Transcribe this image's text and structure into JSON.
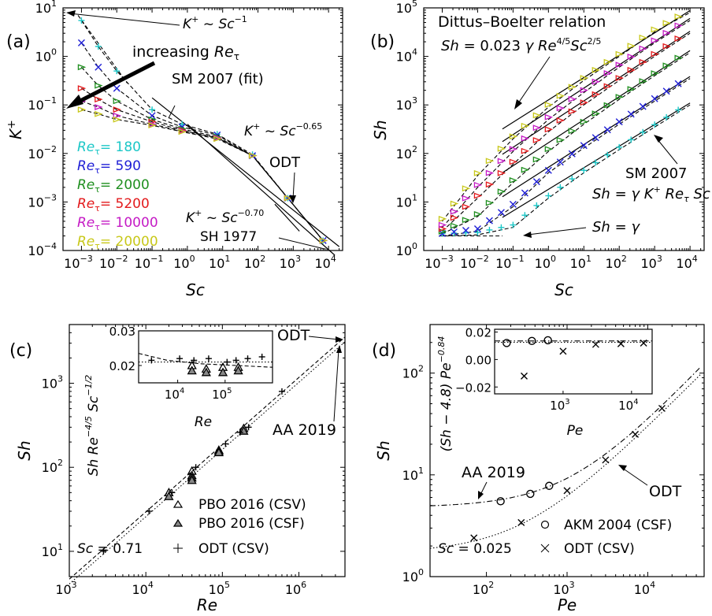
{
  "chart_data": [
    {
      "panel": "(a)",
      "type": "line",
      "xlabel": "Sc",
      "ylabel": "K+",
      "xscale": "log",
      "yscale": "log",
      "xlim": [
        0.0003,
        25000
      ],
      "ylim": [
        0.0001,
        10
      ],
      "x_ticks": [
        "10^-3",
        "10^-2",
        "10^-1",
        "10^0",
        "10^1",
        "10^2",
        "10^3",
        "10^4"
      ],
      "y_ticks": [
        "10^-4",
        "10^-3",
        "10^-2",
        "10^-1",
        "10^0",
        "10^1"
      ],
      "series": [
        {
          "name": "Re_tau = 180",
          "color": "#1cc7c7",
          "x": [
            0.001,
            0.003,
            0.01,
            0.1,
            0.71,
            7,
            70,
            700,
            7000
          ],
          "y": [
            5.5,
            1.6,
            0.5,
            0.08,
            0.04,
            0.025,
            0.0095,
            0.0012,
            0.00016
          ]
        },
        {
          "name": "Re_tau = 590",
          "color": "#1f1fd6",
          "x": [
            0.001,
            0.003,
            0.01,
            0.1,
            0.71,
            7,
            70,
            700,
            7000
          ],
          "y": [
            1.9,
            0.6,
            0.22,
            0.06,
            0.035,
            0.024,
            0.009,
            0.0012,
            0.00016
          ]
        },
        {
          "name": "Re_tau = 2000",
          "color": "#1f8f1f",
          "x": [
            0.001,
            0.003,
            0.01,
            0.1,
            0.71,
            7,
            70,
            700,
            7000
          ],
          "y": [
            0.6,
            0.25,
            0.12,
            0.05,
            0.032,
            0.022,
            0.009,
            0.0012,
            0.00016
          ]
        },
        {
          "name": "Re_tau = 5200",
          "color": "#e31a1c",
          "x": [
            0.001,
            0.003,
            0.01,
            0.1,
            0.71,
            7,
            70,
            700,
            7000
          ],
          "y": [
            0.22,
            0.13,
            0.08,
            0.045,
            0.03,
            0.021,
            0.009,
            0.0012,
            0.00016
          ]
        },
        {
          "name": "Re_tau = 10000",
          "color": "#c51bc5",
          "x": [
            0.001,
            0.003,
            0.01,
            0.1,
            0.71,
            7,
            70,
            700,
            7000
          ],
          "y": [
            0.12,
            0.09,
            0.06,
            0.04,
            0.029,
            0.021,
            0.009,
            0.0012,
            0.00016
          ]
        },
        {
          "name": "Re_tau = 20000",
          "color": "#c8c81a",
          "x": [
            0.001,
            0.003,
            0.01,
            0.1,
            0.71,
            7,
            70,
            700,
            7000
          ],
          "y": [
            0.08,
            0.065,
            0.05,
            0.038,
            0.028,
            0.02,
            0.009,
            0.0012,
            0.00016
          ]
        }
      ],
      "annotations": [
        "K+ ~ Sc^-1",
        "increasing Re_tau",
        "SM 2007 (fit)",
        "K+ ~ Sc^-0.65",
        "ODT",
        "K+ ~ Sc^-0.70",
        "SH 1977"
      ]
    },
    {
      "panel": "(b)",
      "type": "line",
      "xlabel": "Sc",
      "ylabel": "Sh",
      "xscale": "log",
      "yscale": "log",
      "xlim": [
        0.0003,
        25000
      ],
      "ylim": [
        1,
        100000
      ],
      "x_ticks": [
        "10^-3",
        "10^-2",
        "10^-1",
        "10^0",
        "10^1",
        "10^2",
        "10^3",
        "10^4"
      ],
      "y_ticks": [
        "10^0",
        "10^1",
        "10^2",
        "10^3",
        "10^4",
        "10^5"
      ],
      "series": [
        {
          "name": "Re_tau = 180",
          "color": "#1cc7c7",
          "x": [
            0.001,
            0.01,
            0.1,
            1,
            10,
            100,
            1000,
            10000
          ],
          "y": [
            2,
            2.1,
            3,
            12,
            40,
            120,
            350,
            1000
          ]
        },
        {
          "name": "Re_tau = 590",
          "color": "#1f1fd6",
          "x": [
            0.001,
            0.01,
            0.1,
            1,
            10,
            100,
            1000,
            10000
          ],
          "y": [
            2,
            2.5,
            8,
            40,
            130,
            400,
            1200,
            3500
          ]
        },
        {
          "name": "Re_tau = 2000",
          "color": "#1f8f1f",
          "x": [
            0.001,
            0.01,
            0.1,
            1,
            10,
            100,
            1000,
            10000
          ],
          "y": [
            2.2,
            5,
            25,
            110,
            400,
            1300,
            4000,
            12000
          ]
        },
        {
          "name": "Re_tau = 5200",
          "color": "#e31a1c",
          "x": [
            0.001,
            0.01,
            0.1,
            1,
            10,
            100,
            1000,
            10000
          ],
          "y": [
            2.5,
            12,
            60,
            280,
            1000,
            3200,
            10000,
            30000
          ]
        },
        {
          "name": "Re_tau = 10000",
          "color": "#c51bc5",
          "x": [
            0.001,
            0.01,
            0.1,
            1,
            10,
            100,
            1000,
            10000
          ],
          "y": [
            3,
            20,
            110,
            500,
            1800,
            6000,
            19000,
            55000
          ]
        },
        {
          "name": "Re_tau = 20000",
          "color": "#c8c81a",
          "x": [
            0.001,
            0.01,
            0.1,
            1,
            10,
            100,
            1000,
            10000
          ],
          "y": [
            4,
            35,
            200,
            900,
            3200,
            10000,
            32000,
            80000
          ]
        }
      ],
      "annotations": [
        "Dittus–Boelter relation",
        "Sh = 0.023 γ Re^4/5 Sc^2/5",
        "SM 2007",
        "Sh = γ K+ Re_τ Sc",
        "Sh = γ"
      ]
    },
    {
      "panel": "(c)",
      "type": "scatter",
      "xlabel": "Re",
      "ylabel": "Sh",
      "xscale": "log",
      "yscale": "log",
      "xlim": [
        1000,
        4000000
      ],
      "ylim": [
        5,
        5000
      ],
      "x_ticks": [
        "10^3",
        "10^4",
        "10^5",
        "10^6"
      ],
      "y_ticks": [
        "10^1",
        "10^2",
        "10^3"
      ],
      "series": [
        {
          "name": "PBO 2016 (CSV)",
          "marker": "open-triangle",
          "x": [
            20000,
            40000,
            40000,
            90000,
            90000,
            190000
          ],
          "y": [
            50,
            90,
            80,
            160,
            155,
            290
          ]
        },
        {
          "name": "PBO 2016 (CSF)",
          "marker": "filled-triangle",
          "x": [
            20000,
            40000,
            40000,
            90000,
            190000
          ],
          "y": [
            45,
            75,
            70,
            150,
            270
          ]
        },
        {
          "name": "ODT (CSV)",
          "marker": "plus",
          "x": [
            2800,
            11000,
            22000,
            45000,
            110000,
            170000,
            220000,
            600000
          ],
          "y": [
            10,
            30,
            50,
            100,
            190,
            260,
            300,
            800
          ]
        }
      ],
      "inset": {
        "xlabel": "Re",
        "ylabel": "Sh Re^-4/5 Sc^-1/2",
        "yticks": [
          "0.02",
          "0.03"
        ],
        "xticks": [
          "10^4",
          "10^5"
        ]
      },
      "annotations": [
        "ODT",
        "AA 2019",
        "Sc = 0.71"
      ]
    },
    {
      "panel": "(d)",
      "type": "scatter",
      "xlabel": "Pe",
      "ylabel": "Sh",
      "xscale": "log",
      "yscale": "log",
      "xlim": [
        20,
        50000
      ],
      "ylim": [
        1,
        300
      ],
      "x_ticks": [
        "10^2",
        "10^3",
        "10^4"
      ],
      "y_ticks": [
        "10^0",
        "10^1",
        "10^2"
      ],
      "series": [
        {
          "name": "AKM 2004 (CSF)",
          "marker": "circle",
          "x": [
            150,
            350,
            600
          ],
          "y": [
            5.5,
            6.5,
            7.8
          ]
        },
        {
          "name": "ODT (CSV)",
          "marker": "x",
          "x": [
            70,
            270,
            1000,
            3000,
            7000,
            15000
          ],
          "y": [
            2.4,
            3.4,
            7,
            14,
            25,
            45
          ]
        }
      ],
      "inset": {
        "xlabel": "Pe",
        "ylabel": "(Sh − 4.8) Pe^-0.84",
        "yticks": [
          "−0.02",
          "0.00",
          "0.02"
        ],
        "xticks": [
          "10^3",
          "10^4"
        ]
      },
      "annotations": [
        "AA 2019",
        "ODT",
        "Sc = 0.025"
      ]
    }
  ],
  "labels": {
    "a": {
      "panel": "(a)",
      "yl": "K",
      "ylsup": "+",
      "xl": "Sc",
      "xt": [
        "10",
        "10",
        "10",
        "10",
        "10",
        "10",
        "10",
        "10"
      ],
      "xtsup": [
        "−3",
        "−2",
        "−1",
        "0",
        "1",
        "2",
        "3",
        "4"
      ],
      "yt": [
        "10",
        "10",
        "10",
        "10",
        "10",
        "10"
      ],
      "ytsup": [
        "−4",
        "−3",
        "−2",
        "−1",
        "0",
        "1"
      ],
      "legend": [
        "Re",
        "Re",
        "Re",
        "Re",
        "Re",
        "Re"
      ],
      "legendval": [
        "= 180",
        "= 590",
        "= 2000",
        "= 5200",
        "= 10000",
        "= 20000"
      ],
      "ann1": "K",
      "ann1b": "+",
      "ann1c": " ~ ",
      "ann1d": "Sc",
      "ann1e": "−1",
      "ann2": "increasing ",
      "ann2b": "Re",
      "ann3": "SM 2007 (fit)",
      "ann4": "K",
      "ann4b": "+",
      "ann4c": " ~ ",
      "ann4d": "Sc",
      "ann4e": "−0.65",
      "ann5": "ODT",
      "ann6": "K",
      "ann6b": "+",
      "ann6c": " ~ ",
      "ann6d": "Sc",
      "ann6e": "−0.70",
      "ann7": "SH 1977"
    },
    "b": {
      "panel": "(b)",
      "yl": "Sh",
      "xl": "Sc",
      "ann1": "Dittus–Boelter relation",
      "ann2a": "Sh",
      "ann2b": " = 0.023 ",
      "ann2c": "γ",
      "ann2d": " Re",
      "ann2e": "4/5",
      "ann2f": "Sc",
      "ann2g": "2/5",
      "ann3": "SM 2007",
      "ann4a": "Sh",
      "ann4b": " = ",
      "ann4c": "γ K",
      "ann4d": "+",
      "ann4e": " Re",
      "ann4f": "τ",
      "ann4g": " Sc",
      "ann5a": "Sh",
      "ann5b": " = ",
      "ann5c": "γ"
    },
    "c": {
      "panel": "(c)",
      "yl": "Sh",
      "xl": "Re",
      "leg1": "PBO 2016 (CSV)",
      "leg2": "PBO 2016 (CSF)",
      "leg3": "ODT (CSV)",
      "sc": "Sc",
      "scv": " = 0.71",
      "ann1": "ODT",
      "ann2": "AA 2019",
      "inset_yl_a": "Sh Re",
      "inset_yl_b": "−4/5",
      "inset_yl_c": " Sc",
      "inset_yl_d": "−1/2",
      "inset_xl": "Re"
    },
    "d": {
      "panel": "(d)",
      "yl": "Sh",
      "xl": "Pe",
      "leg1": "AKM 2004 (CSF)",
      "leg2": "ODT (CSV)",
      "sc": "Sc",
      "scv": " = 0.025",
      "ann1": "AA 2019",
      "ann2": "ODT",
      "inset_yl_a": "(Sh − 4.8) Pe",
      "inset_yl_b": "−0.84",
      "inset_xl": "Pe"
    }
  }
}
